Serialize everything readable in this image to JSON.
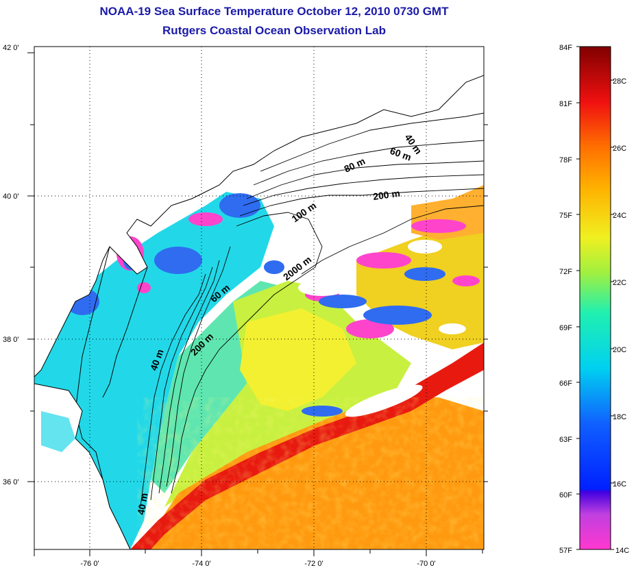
{
  "title": "NOAA-19 Sea Surface Temperature October 12, 2010 0730 GMT",
  "subtitle": "Rutgers Coastal Ocean Observation Lab",
  "lat_ticks": [
    "42 0'",
    "40 0'",
    "38 0'",
    "36 0'"
  ],
  "lon_ticks": [
    "-76 0'",
    "-74 0'",
    "-72 0'",
    "-70 0'"
  ],
  "contour_labels": [
    "40 m",
    "60 m",
    "80 m",
    "100 m",
    "200 m",
    "2000 m",
    "60 m",
    "200 m",
    "40 m",
    "40 m"
  ],
  "colorbar": {
    "fahrenheit": [
      "84F",
      "81F",
      "78F",
      "75F",
      "72F",
      "69F",
      "66F",
      "63F",
      "60F",
      "57F"
    ],
    "celsius": [
      "28C",
      "26C",
      "24C",
      "22C",
      "20C",
      "18C",
      "16C",
      "14C"
    ]
  },
  "colors": {
    "title": "#1a1aa8",
    "land": "#ffffff",
    "cold": "#ff44cc",
    "cool": "#2f6cf0",
    "shelf": "#22d8e8",
    "mid": "#c8f040",
    "warm": "#ff9a10",
    "hot": "#e81a10"
  }
}
